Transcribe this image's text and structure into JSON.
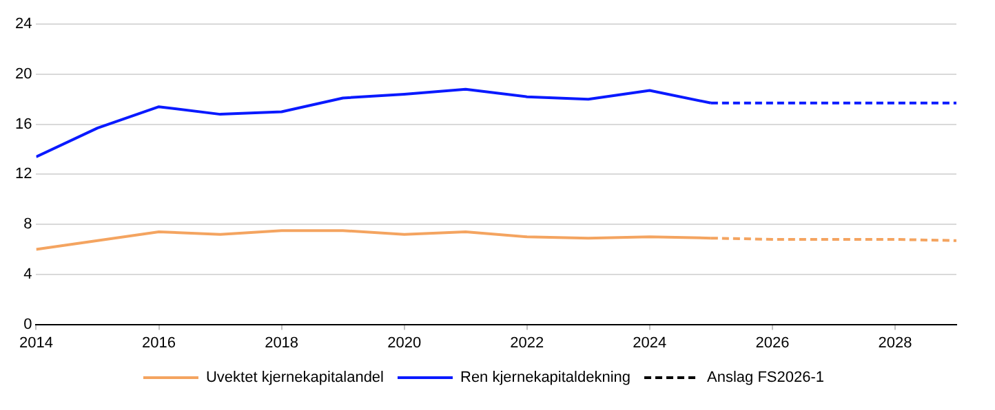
{
  "chart_data": {
    "type": "line",
    "xlim": [
      2014,
      2029
    ],
    "xticks": [
      2014,
      2016,
      2018,
      2020,
      2022,
      2024,
      2026,
      2028
    ],
    "ylim": [
      0,
      24
    ],
    "yticks": [
      0,
      4,
      8,
      12,
      16,
      20,
      24
    ],
    "grid": "y",
    "legend": "bottom",
    "marker": "none",
    "series": [
      {
        "name": "Uvektet kjernekapitalandel",
        "color": "#f4a460",
        "line_style": "solid",
        "x": [
          2014,
          2015,
          2016,
          2017,
          2018,
          2019,
          2020,
          2021,
          2022,
          2023,
          2024,
          2025
        ],
        "values": [
          6.0,
          6.7,
          7.4,
          7.2,
          7.5,
          7.5,
          7.2,
          7.4,
          7.0,
          6.9,
          7.0,
          6.9
        ]
      },
      {
        "name": "Ren kjernekapitaldekning",
        "color": "#0a1aff",
        "line_style": "solid",
        "x": [
          2014,
          2015,
          2016,
          2017,
          2018,
          2019,
          2020,
          2021,
          2022,
          2023,
          2024,
          2025
        ],
        "values": [
          13.4,
          15.7,
          17.4,
          16.8,
          17.0,
          18.1,
          18.4,
          18.8,
          18.2,
          18.0,
          18.7,
          17.7
        ]
      },
      {
        "color": "#f4a460",
        "line_style": "dashed",
        "x": [
          2025,
          2026,
          2027,
          2028,
          2029
        ],
        "values": [
          6.9,
          6.8,
          6.8,
          6.8,
          6.7
        ]
      },
      {
        "color": "#0a1aff",
        "line_style": "dashed",
        "x": [
          2025,
          2026,
          2027,
          2028,
          2029
        ],
        "values": [
          17.7,
          17.7,
          17.7,
          17.7,
          17.7
        ]
      },
      {
        "name": "Anslag FS2026-1",
        "color": "#000000",
        "line_style": "dashed"
      }
    ]
  }
}
